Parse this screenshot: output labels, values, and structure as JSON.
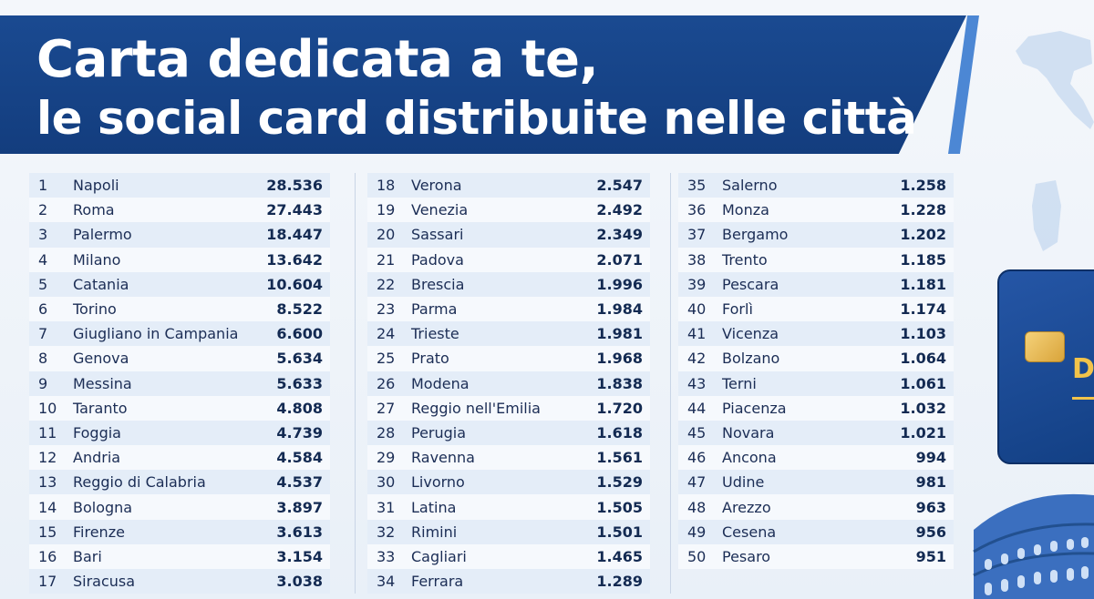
{
  "header": {
    "title_line1": "Carta dedicata a te,",
    "title_line2": "le social card distribuite nelle città"
  },
  "card": {
    "letter": "D"
  },
  "columns": [
    [
      {
        "rank": "1",
        "city": "Napoli",
        "value": "28.536"
      },
      {
        "rank": "2",
        "city": "Roma",
        "value": "27.443"
      },
      {
        "rank": "3",
        "city": "Palermo",
        "value": "18.447"
      },
      {
        "rank": "4",
        "city": "Milano",
        "value": "13.642"
      },
      {
        "rank": "5",
        "city": "Catania",
        "value": "10.604"
      },
      {
        "rank": "6",
        "city": "Torino",
        "value": "8.522"
      },
      {
        "rank": "7",
        "city": "Giugliano in Campania",
        "value": "6.600"
      },
      {
        "rank": "8",
        "city": "Genova",
        "value": "5.634"
      },
      {
        "rank": "9",
        "city": "Messina",
        "value": "5.633"
      },
      {
        "rank": "10",
        "city": "Taranto",
        "value": "4.808"
      },
      {
        "rank": "11",
        "city": "Foggia",
        "value": "4.739"
      },
      {
        "rank": "12",
        "city": "Andria",
        "value": "4.584"
      },
      {
        "rank": "13",
        "city": "Reggio di Calabria",
        "value": "4.537"
      },
      {
        "rank": "14",
        "city": "Bologna",
        "value": "3.897"
      },
      {
        "rank": "15",
        "city": "Firenze",
        "value": "3.613"
      },
      {
        "rank": "16",
        "city": "Bari",
        "value": "3.154"
      },
      {
        "rank": "17",
        "city": "Siracusa",
        "value": "3.038"
      }
    ],
    [
      {
        "rank": "18",
        "city": "Verona",
        "value": "2.547"
      },
      {
        "rank": "19",
        "city": "Venezia",
        "value": "2.492"
      },
      {
        "rank": "20",
        "city": "Sassari",
        "value": "2.349"
      },
      {
        "rank": "21",
        "city": "Padova",
        "value": "2.071"
      },
      {
        "rank": "22",
        "city": "Brescia",
        "value": "1.996"
      },
      {
        "rank": "23",
        "city": "Parma",
        "value": "1.984"
      },
      {
        "rank": "24",
        "city": "Trieste",
        "value": "1.981"
      },
      {
        "rank": "25",
        "city": "Prato",
        "value": "1.968"
      },
      {
        "rank": "26",
        "city": "Modena",
        "value": "1.838"
      },
      {
        "rank": "27",
        "city": "Reggio nell'Emilia",
        "value": "1.720"
      },
      {
        "rank": "28",
        "city": "Perugia",
        "value": "1.618"
      },
      {
        "rank": "29",
        "city": "Ravenna",
        "value": "1.561"
      },
      {
        "rank": "30",
        "city": "Livorno",
        "value": "1.529"
      },
      {
        "rank": "31",
        "city": "Latina",
        "value": "1.505"
      },
      {
        "rank": "32",
        "city": "Rimini",
        "value": "1.501"
      },
      {
        "rank": "33",
        "city": "Cagliari",
        "value": "1.465"
      },
      {
        "rank": "34",
        "city": "Ferrara",
        "value": "1.289"
      }
    ],
    [
      {
        "rank": "35",
        "city": "Salerno",
        "value": "1.258"
      },
      {
        "rank": "36",
        "city": "Monza",
        "value": "1.228"
      },
      {
        "rank": "37",
        "city": "Bergamo",
        "value": "1.202"
      },
      {
        "rank": "38",
        "city": "Trento",
        "value": "1.185"
      },
      {
        "rank": "39",
        "city": "Pescara",
        "value": "1.181"
      },
      {
        "rank": "40",
        "city": "Forlì",
        "value": "1.174"
      },
      {
        "rank": "41",
        "city": "Vicenza",
        "value": "1.103"
      },
      {
        "rank": "42",
        "city": "Bolzano",
        "value": "1.064"
      },
      {
        "rank": "43",
        "city": "Terni",
        "value": "1.061"
      },
      {
        "rank": "44",
        "city": "Piacenza",
        "value": "1.032"
      },
      {
        "rank": "45",
        "city": "Novara",
        "value": "1.021"
      },
      {
        "rank": "46",
        "city": "Ancona",
        "value": "994"
      },
      {
        "rank": "47",
        "city": "Udine",
        "value": "981"
      },
      {
        "rank": "48",
        "city": "Arezzo",
        "value": "963"
      },
      {
        "rank": "49",
        "city": "Cesena",
        "value": "956"
      },
      {
        "rank": "50",
        "city": "Pesaro",
        "value": "951"
      }
    ]
  ]
}
